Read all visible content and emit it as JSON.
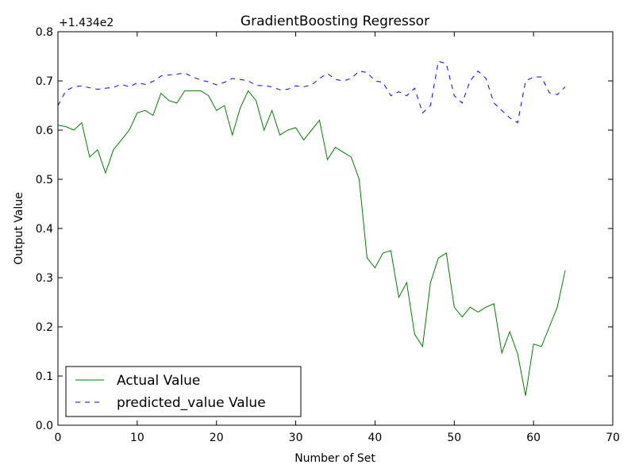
{
  "chart_data": {
    "type": "line",
    "title": "GradientBoosting Regressor",
    "xlabel": "Number of Set",
    "ylabel": "Output Value",
    "offset_text": "+1.434e2",
    "xlim": [
      0,
      70
    ],
    "ylim": [
      0.0,
      0.8
    ],
    "xticks": [
      0,
      10,
      20,
      30,
      40,
      50,
      60,
      70
    ],
    "yticks": [
      0.0,
      0.1,
      0.2,
      0.3,
      0.4,
      0.5,
      0.6,
      0.7,
      0.8
    ],
    "grid": false,
    "legend_position": "lower-left",
    "x": [
      0,
      1,
      2,
      3,
      4,
      5,
      6,
      7,
      8,
      9,
      10,
      11,
      12,
      13,
      14,
      15,
      16,
      17,
      18,
      19,
      20,
      21,
      22,
      23,
      24,
      25,
      26,
      27,
      28,
      29,
      30,
      31,
      32,
      33,
      34,
      35,
      36,
      37,
      38,
      39,
      40,
      41,
      42,
      43,
      44,
      45,
      46,
      47,
      48,
      49,
      50,
      51,
      52,
      53,
      54,
      55,
      56,
      57,
      58,
      59,
      60,
      61,
      62,
      63,
      64
    ],
    "series": [
      {
        "name": "Actual Value",
        "color": "#008000",
        "style": "solid",
        "values": [
          0.61,
          0.607,
          0.6,
          0.615,
          0.545,
          0.56,
          0.513,
          0.56,
          0.58,
          0.6,
          0.635,
          0.64,
          0.63,
          0.675,
          0.66,
          0.655,
          0.68,
          0.68,
          0.68,
          0.67,
          0.64,
          0.65,
          0.59,
          0.645,
          0.68,
          0.66,
          0.6,
          0.64,
          0.59,
          0.6,
          0.605,
          0.58,
          0.6,
          0.62,
          0.54,
          0.565,
          0.555,
          0.545,
          0.5,
          0.34,
          0.32,
          0.35,
          0.355,
          0.26,
          0.29,
          0.185,
          0.16,
          0.29,
          0.34,
          0.35,
          0.24,
          0.22,
          0.24,
          0.23,
          0.24,
          0.247,
          0.147,
          0.19,
          0.145,
          0.06,
          0.165,
          0.16,
          0.2,
          0.24,
          0.315
        ]
      },
      {
        "name": "predicted_value Value",
        "color": "#0000ff",
        "style": "dashed",
        "values": [
          0.65,
          0.68,
          0.688,
          0.69,
          0.686,
          0.683,
          0.685,
          0.687,
          0.693,
          0.688,
          0.696,
          0.693,
          0.699,
          0.71,
          0.712,
          0.714,
          0.716,
          0.708,
          0.702,
          0.698,
          0.692,
          0.697,
          0.705,
          0.703,
          0.7,
          0.691,
          0.69,
          0.688,
          0.682,
          0.683,
          0.69,
          0.688,
          0.692,
          0.705,
          0.715,
          0.703,
          0.7,
          0.705,
          0.72,
          0.717,
          0.7,
          0.697,
          0.67,
          0.678,
          0.67,
          0.685,
          0.635,
          0.65,
          0.74,
          0.735,
          0.67,
          0.655,
          0.7,
          0.72,
          0.705,
          0.655,
          0.64,
          0.625,
          0.615,
          0.7,
          0.708,
          0.708,
          0.676,
          0.672,
          0.688
        ]
      }
    ]
  }
}
